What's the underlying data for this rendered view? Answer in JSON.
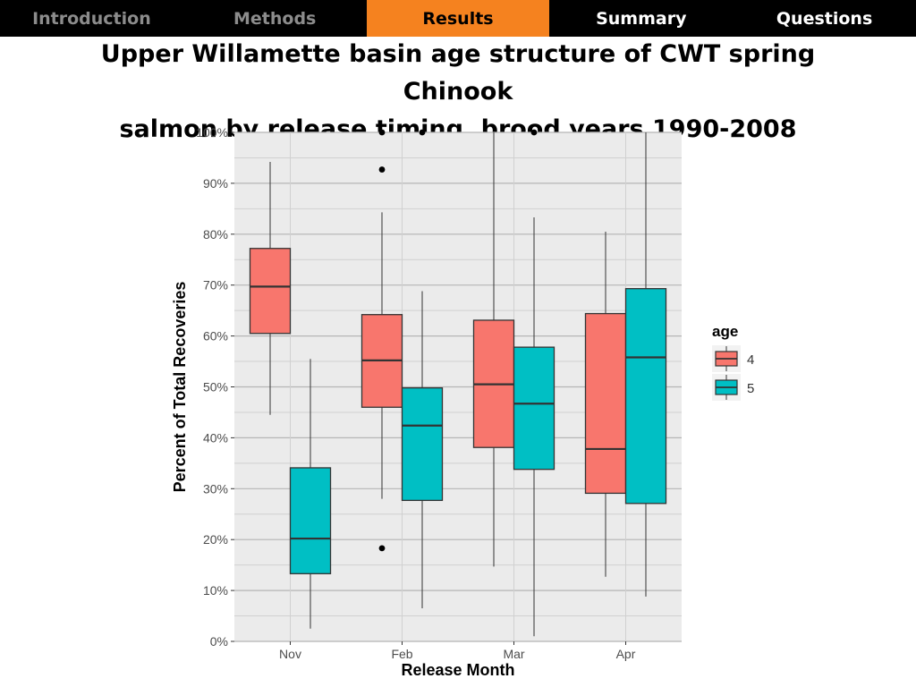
{
  "nav": {
    "tabs": [
      {
        "label": "Introduction",
        "state": "past"
      },
      {
        "label": "Methods",
        "state": "past"
      },
      {
        "label": "Results",
        "state": "active"
      },
      {
        "label": "Summary",
        "state": "future"
      },
      {
        "label": "Questions",
        "state": "future"
      }
    ]
  },
  "slide": {
    "title_line1": "Upper Willamette basin age structure of CWT spring Chinook",
    "title_line2": "salmon by release timing, brood years 1990-2008"
  },
  "chart_data": {
    "type": "boxplot",
    "xlabel": "Release Month",
    "ylabel": "Percent of Total Recoveries",
    "categories": [
      "Nov",
      "Feb",
      "Mar",
      "Apr"
    ],
    "ylim": [
      0,
      100
    ],
    "yticks": [
      0,
      10,
      20,
      30,
      40,
      50,
      60,
      70,
      80,
      90,
      100
    ],
    "ytick_format": "%",
    "grid": true,
    "legend": {
      "title": "age",
      "placement": "right"
    },
    "series": [
      {
        "name": "4",
        "color": "#f8766d",
        "boxes": [
          {
            "min": 44.5,
            "q1": 60.5,
            "median": 69.7,
            "q3": 77.2,
            "max": 94.2,
            "outliers": []
          },
          {
            "min": 28.0,
            "q1": 46.0,
            "median": 55.2,
            "q3": 64.2,
            "max": 84.3,
            "outliers": [
              18.3,
              92.7,
              100
            ]
          },
          {
            "min": 14.7,
            "q1": 38.1,
            "median": 50.5,
            "q3": 63.1,
            "max": 100,
            "outliers": []
          },
          {
            "min": 12.7,
            "q1": 29.1,
            "median": 37.8,
            "q3": 64.4,
            "max": 80.5,
            "outliers": []
          }
        ]
      },
      {
        "name": "5",
        "color": "#00bfc4",
        "boxes": [
          {
            "min": 2.5,
            "q1": 13.3,
            "median": 20.2,
            "q3": 34.1,
            "max": 55.5,
            "outliers": []
          },
          {
            "min": 6.5,
            "q1": 27.7,
            "median": 42.4,
            "q3": 49.8,
            "max": 68.8,
            "outliers": [
              100
            ]
          },
          {
            "min": 1.0,
            "q1": 33.8,
            "median": 46.7,
            "q3": 57.8,
            "max": 83.3,
            "outliers": [
              100
            ]
          },
          {
            "min": 8.8,
            "q1": 27.1,
            "median": 55.8,
            "q3": 69.3,
            "max": 100,
            "outliers": []
          }
        ]
      }
    ]
  }
}
